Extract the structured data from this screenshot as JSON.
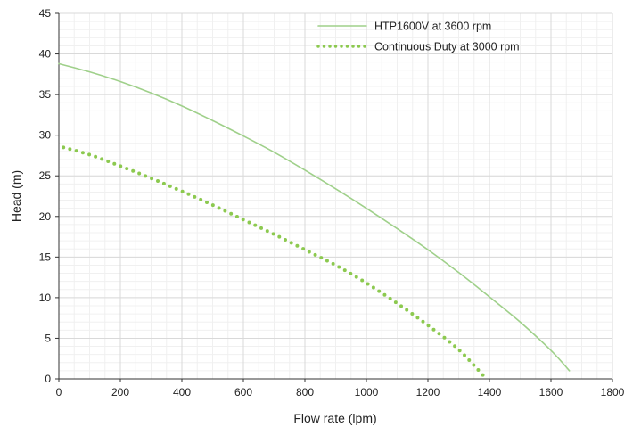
{
  "chart_data": {
    "type": "line",
    "title": "",
    "xlabel": "Flow rate (lpm)",
    "ylabel": "Head (m)",
    "xlim": [
      0,
      1800
    ],
    "ylim": [
      0,
      45
    ],
    "x_ticks": [
      0,
      200,
      400,
      600,
      800,
      1000,
      1200,
      1400,
      1600,
      1800
    ],
    "y_ticks": [
      0,
      5,
      10,
      15,
      20,
      25,
      30,
      35,
      40,
      45
    ],
    "x_tick_labels": [
      "0",
      "200",
      "400",
      "600",
      "800",
      "1000",
      "1200",
      "1400",
      "1600",
      "1800"
    ],
    "y_tick_labels": [
      "0",
      "5",
      "10",
      "15",
      "20",
      "25",
      "30",
      "35",
      "40",
      "45"
    ],
    "grid": true,
    "minor_grid": true,
    "legend_position": "top-right",
    "series": [
      {
        "name": "HTP1600V at 3600 rpm",
        "style": "solid",
        "color": "#9fd08a",
        "x": [
          0,
          100,
          200,
          300,
          400,
          500,
          600,
          700,
          800,
          900,
          1000,
          1100,
          1200,
          1300,
          1400,
          1500,
          1600,
          1660
        ],
        "y": [
          38.8,
          37.8,
          36.6,
          35.2,
          33.6,
          31.8,
          29.9,
          27.9,
          25.7,
          23.4,
          21.0,
          18.5,
          15.9,
          13.1,
          10.1,
          7.0,
          3.5,
          1.0
        ]
      },
      {
        "name": "Continuous Duty at 3000 rpm",
        "style": "dotted",
        "color": "#8cc94f",
        "x": [
          15,
          100,
          200,
          300,
          400,
          500,
          600,
          700,
          800,
          900,
          1000,
          1100,
          1200,
          1300,
          1390
        ],
        "y": [
          28.5,
          27.6,
          26.2,
          24.7,
          23.1,
          21.4,
          19.6,
          17.8,
          15.9,
          14.0,
          11.8,
          9.3,
          6.6,
          3.6,
          0.0
        ]
      }
    ]
  }
}
